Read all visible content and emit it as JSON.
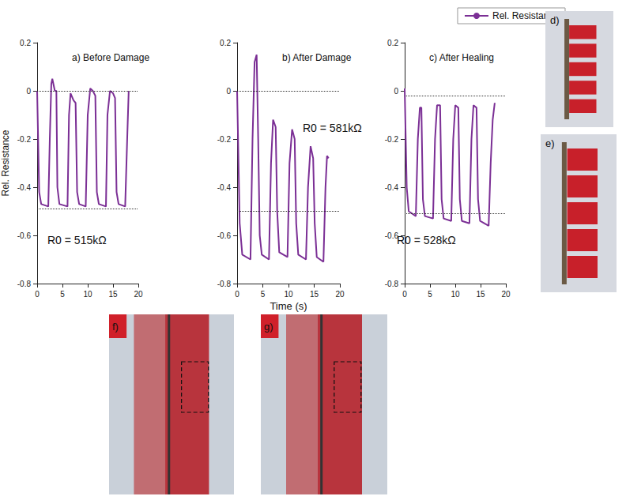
{
  "chart_data": [
    {
      "type": "line",
      "title": "a) Before Damage",
      "annotation": "R0 = 515kΩ",
      "ylabel": "Rel. Resistance",
      "xlim": [
        0,
        20
      ],
      "xticks": [
        0,
        5,
        10,
        15,
        20
      ],
      "ylim": [
        -0.8,
        0.2
      ],
      "yticks": [
        -0.8,
        -0.6,
        -0.4,
        -0.2,
        0,
        0.2
      ],
      "reference_lines": [
        0,
        -0.49
      ],
      "series": [
        {
          "name": "Rel. Resistance",
          "color": "#7b2f95",
          "x": [
            0,
            0.4,
            0.8,
            2.2,
            2.5,
            2.8,
            3.0,
            3.5,
            3.8,
            4.0,
            4.4,
            6.0,
            6.3,
            6.6,
            7.2,
            7.6,
            7.9,
            8.3,
            9.6,
            10.0,
            10.5,
            11.0,
            11.5,
            11.8,
            12.2,
            13.6,
            13.9,
            14.4,
            15.0,
            15.4,
            15.7,
            16.1,
            17.4,
            17.8,
            18.1
          ],
          "values": [
            0,
            -0.42,
            -0.47,
            -0.48,
            -0.2,
            0.03,
            0.05,
            0.0,
            0.0,
            -0.4,
            -0.47,
            -0.48,
            -0.1,
            -0.01,
            -0.04,
            -0.05,
            -0.42,
            -0.47,
            -0.48,
            -0.1,
            0.01,
            0.0,
            -0.02,
            -0.42,
            -0.47,
            -0.48,
            -0.1,
            0.0,
            -0.01,
            -0.03,
            -0.42,
            -0.47,
            -0.48,
            -0.2,
            0.0
          ]
        }
      ]
    },
    {
      "type": "line",
      "title": "b) After Damage",
      "annotation": "R0 = 581kΩ",
      "xlabel": "Time (s)",
      "xlim": [
        0,
        20
      ],
      "xticks": [
        0,
        5,
        10,
        15,
        20
      ],
      "ylim": [
        -0.8,
        0.2
      ],
      "yticks": [
        -0.8,
        -0.6,
        -0.4,
        -0.2,
        0,
        0.2
      ],
      "reference_lines": [
        0,
        -0.5
      ],
      "series": [
        {
          "name": "Rel. Resistance",
          "color": "#7b2f95",
          "x": [
            0,
            0.5,
            1.0,
            2.6,
            3.0,
            3.4,
            3.8,
            4.1,
            4.4,
            4.8,
            6.2,
            6.6,
            7.0,
            7.5,
            7.8,
            8.2,
            9.8,
            10.2,
            10.7,
            11.2,
            11.5,
            11.9,
            13.4,
            13.8,
            14.3,
            14.8,
            15.1,
            15.5,
            16.8,
            17.2,
            17.5,
            17.8
          ],
          "values": [
            0,
            -0.55,
            -0.68,
            -0.7,
            -0.2,
            0.12,
            0.15,
            -0.2,
            -0.6,
            -0.68,
            -0.7,
            -0.3,
            -0.12,
            -0.15,
            -0.5,
            -0.67,
            -0.69,
            -0.3,
            -0.16,
            -0.2,
            -0.55,
            -0.68,
            -0.7,
            -0.4,
            -0.23,
            -0.28,
            -0.55,
            -0.69,
            -0.71,
            -0.4,
            -0.27,
            -0.28
          ]
        }
      ]
    },
    {
      "type": "line",
      "title": "c) After Healing",
      "annotation": "R0 = 528kΩ",
      "legend": "upper right",
      "xlim": [
        0,
        20
      ],
      "xticks": [
        0,
        5,
        10,
        15,
        20
      ],
      "ylim": [
        -0.8,
        0.2
      ],
      "yticks": [
        -0.8,
        -0.6,
        -0.4,
        -0.2,
        0,
        0.2
      ],
      "reference_lines": [
        -0.02,
        -0.51
      ],
      "series": [
        {
          "name": "Rel. Resistance",
          "color": "#7b2f95",
          "x": [
            0,
            0.4,
            0.8,
            2.2,
            2.6,
            3.0,
            3.3,
            3.6,
            4.0,
            5.6,
            6.0,
            6.4,
            7.0,
            7.3,
            7.7,
            9.2,
            9.6,
            10.0,
            10.6,
            10.9,
            11.3,
            12.8,
            13.2,
            13.6,
            14.2,
            14.5,
            14.9,
            16.6,
            17.0,
            17.4,
            17.8
          ],
          "values": [
            0.01,
            -0.4,
            -0.5,
            -0.52,
            -0.2,
            -0.07,
            -0.07,
            -0.45,
            -0.52,
            -0.53,
            -0.2,
            -0.06,
            -0.06,
            -0.45,
            -0.53,
            -0.54,
            -0.2,
            -0.06,
            -0.07,
            -0.45,
            -0.54,
            -0.55,
            -0.2,
            -0.06,
            -0.07,
            -0.45,
            -0.54,
            -0.56,
            -0.3,
            -0.12,
            -0.05
          ]
        }
      ]
    }
  ],
  "photos": [
    {
      "label": "d)"
    },
    {
      "label": "e)"
    },
    {
      "label": "f)"
    },
    {
      "label": "g)"
    }
  ]
}
